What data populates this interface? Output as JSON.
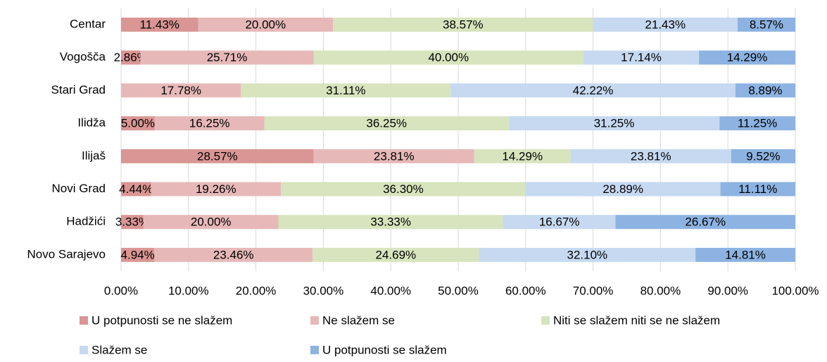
{
  "chart_data": {
    "type": "stacked-bar-horizontal",
    "categories": [
      "Centar",
      "Vogošča",
      "Stari Grad",
      "Ilidža",
      "Ilijaš",
      "Novi Grad",
      "Hadžići",
      "Novo Sarajevo"
    ],
    "series": [
      {
        "name": "U potpunosti se ne slažem",
        "color": "#d99694",
        "values": [
          11.43,
          2.86,
          null,
          5.0,
          28.57,
          4.44,
          3.33,
          4.94
        ],
        "value_labels": [
          "11.43%",
          "2.86%",
          null,
          "5.00%",
          "28.57%",
          "4.44%",
          "3.33%",
          "4.94%"
        ]
      },
      {
        "name": "Ne slažem se",
        "color": "#e6b9b8",
        "values": [
          20.0,
          25.71,
          17.78,
          16.25,
          23.81,
          19.26,
          20.0,
          23.46
        ],
        "value_labels": [
          "20.00%",
          "25.71%",
          "17.78%",
          "16.25%",
          "23.81%",
          "19.26%",
          "20.00%",
          "23.46%"
        ]
      },
      {
        "name": "Niti se slažem niti se ne slažem",
        "color": "#d7e4bd",
        "values": [
          38.57,
          40.0,
          31.11,
          36.25,
          14.29,
          36.3,
          33.33,
          24.69
        ],
        "value_labels": [
          "38.57%",
          "40.00%",
          "31.11%",
          "36.25%",
          "14.29%",
          "36.30%",
          "33.33%",
          "24.69%"
        ]
      },
      {
        "name": "Slažem se",
        "color": "#c6d9f1",
        "values": [
          21.43,
          17.14,
          42.22,
          31.25,
          23.81,
          28.89,
          16.67,
          32.1
        ],
        "value_labels": [
          "21.43%",
          "17.14%",
          "42.22%",
          "31.25%",
          "23.81%",
          "28.89%",
          "16.67%",
          "32.10%"
        ]
      },
      {
        "name": "U potpunosti se slažem",
        "color": "#8db3e2",
        "values": [
          8.57,
          14.29,
          8.89,
          11.25,
          9.52,
          11.11,
          26.67,
          14.81
        ],
        "value_labels": [
          "8.57%",
          "14.29%",
          "8.89%",
          "11.25%",
          "9.52%",
          "11.11%",
          "26.67%",
          "14.81%"
        ]
      }
    ],
    "xlim": [
      0,
      100
    ],
    "xticks": [
      {
        "value": 0,
        "label": "0.00%"
      },
      {
        "value": 10,
        "label": "10.00%"
      },
      {
        "value": 20,
        "label": "20.00%"
      },
      {
        "value": 30,
        "label": "30.00%"
      },
      {
        "value": 40,
        "label": "40.00%"
      },
      {
        "value": 50,
        "label": "50.00%"
      },
      {
        "value": 60,
        "label": "60.00%"
      },
      {
        "value": 70,
        "label": "70.00%"
      },
      {
        "value": 80,
        "label": "80.00%"
      },
      {
        "value": 90,
        "label": "90.00%"
      },
      {
        "value": 100,
        "label": "100.00%"
      }
    ],
    "grid": true
  }
}
